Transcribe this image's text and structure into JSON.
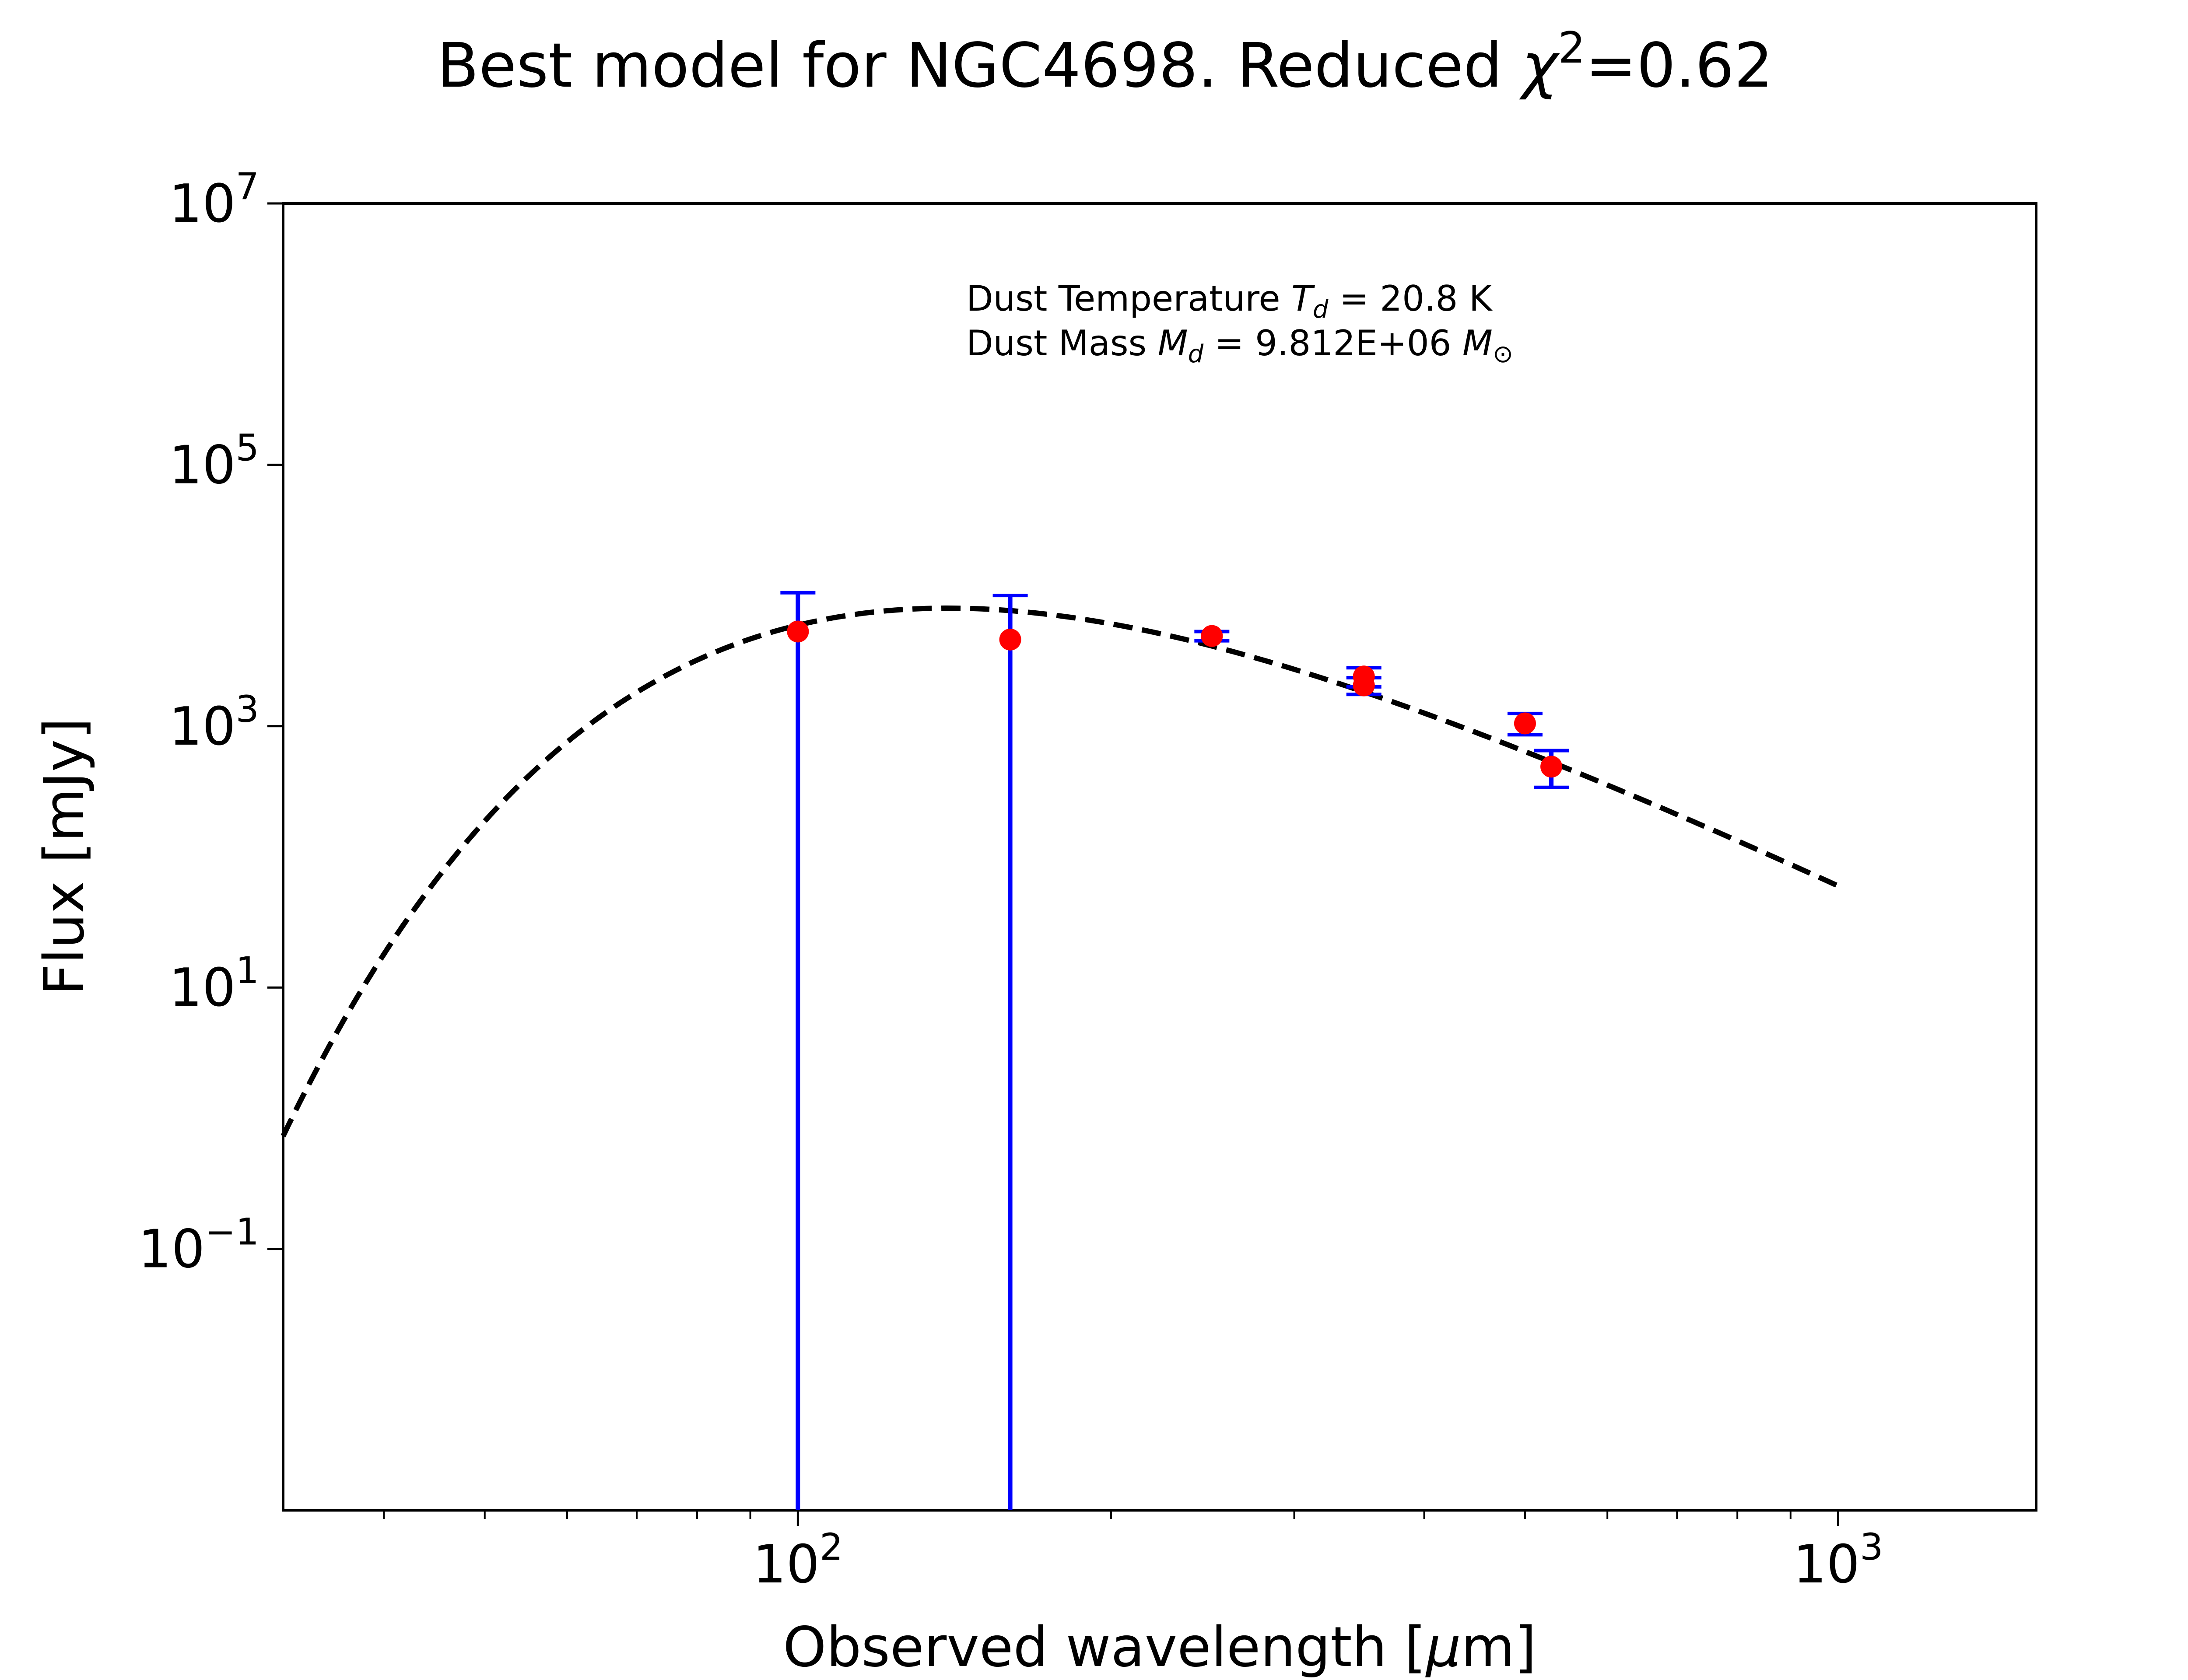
{
  "chart_data": {
    "type": "scatter",
    "title": {
      "main": "Best model for NGC4698. Reduced ",
      "chi": "χ",
      "sup": "2",
      "value": "=0.62"
    },
    "xlabel": {
      "text": "Observed wavelength [",
      "mu": "μ",
      "unit": "m]"
    },
    "ylabel": "Flux [mJy]",
    "xscale": "log",
    "yscale": "log",
    "xlim": [
      32,
      1550
    ],
    "ylim": [
      0.001,
      10000000
    ],
    "x_ticks": [
      {
        "value": 100,
        "base": "10",
        "exp": "2"
      },
      {
        "value": 1000,
        "base": "10",
        "exp": "3"
      }
    ],
    "y_ticks": [
      {
        "value": 10000000,
        "base": "10",
        "exp": "7"
      },
      {
        "value": 100000,
        "base": "10",
        "exp": "5"
      },
      {
        "value": 1000,
        "base": "10",
        "exp": "3"
      },
      {
        "value": 10,
        "base": "10",
        "exp": "1"
      },
      {
        "value": 0.1,
        "base": "10",
        "exp": "−1"
      }
    ],
    "annotation": {
      "line1": {
        "prefix": "Dust Temperature ",
        "sym": "T",
        "sub": "d",
        "suffix": " = 20.8 K"
      },
      "line2": {
        "prefix": "Dust Mass ",
        "sym": "M",
        "sub": "d",
        "mid": " = 9.812E+06 ",
        "sym2": "M",
        "sub2": "⊙"
      }
    },
    "model": {
      "name": "modified blackbody",
      "style": "dashed",
      "color": "#000000",
      "temperature_K": 20.8,
      "beta": 2.0,
      "x_range": [
        32,
        1000
      ],
      "peak_flux_mJy": 8000
    },
    "observations": [
      {
        "x": 100,
        "y": 5300,
        "ylow": 0.001,
        "yhigh": 10500
      },
      {
        "x": 160,
        "y": 4600,
        "ylow": 0.001,
        "yhigh": 10000
      },
      {
        "x": 250,
        "y": 4900,
        "ylow": 4500,
        "yhigh": 5300
      },
      {
        "x": 350,
        "y": 2400,
        "ylow": 2000,
        "yhigh": 2800
      },
      {
        "x": 350,
        "y": 2050,
        "ylow": 1750,
        "yhigh": 2350
      },
      {
        "x": 500,
        "y": 1050,
        "ylow": 860,
        "yhigh": 1250
      },
      {
        "x": 530,
        "y": 490,
        "ylow": 340,
        "yhigh": 650
      }
    ],
    "colors": {
      "point": "#ff0000",
      "errorbar": "#0000ff",
      "model": "#000000",
      "axis": "#000000"
    },
    "grid": false,
    "legend": "none"
  }
}
